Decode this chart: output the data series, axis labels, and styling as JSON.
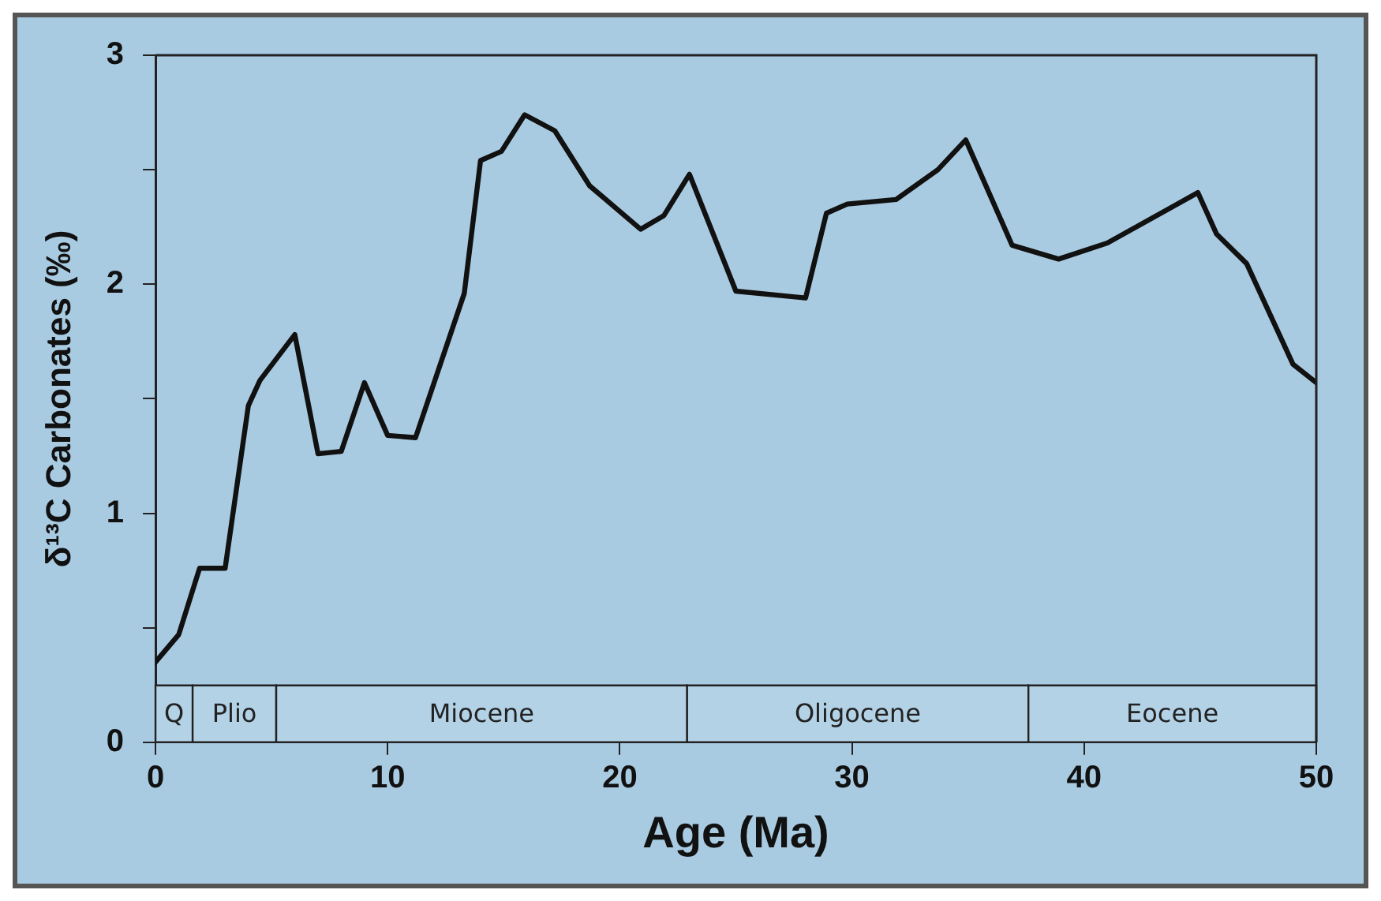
{
  "chart_data": {
    "type": "line",
    "xlabel": "Age (Ma)",
    "ylabel": "δ¹³C Carbonates (‰)",
    "xlim": [
      0,
      50
    ],
    "xticks": [
      0,
      10,
      20,
      30,
      40,
      50
    ],
    "ylim": [
      0,
      3
    ],
    "yticks": [
      0,
      {
        "value": 0.5,
        "label": null
      },
      1,
      {
        "value": 1.5,
        "label": null
      },
      2,
      {
        "value": 2.5,
        "label": null
      },
      3
    ],
    "grid": false,
    "legend": false,
    "marker": "none",
    "line_style": "solid",
    "bands": [
      {
        "axis": "x",
        "from": 0,
        "to": 1.6,
        "label": "Q",
        "color": "#b3d2e6"
      },
      {
        "axis": "x",
        "from": 1.6,
        "to": 5.2,
        "label": "Plio",
        "color": "#b3d2e6"
      },
      {
        "axis": "x",
        "from": 5.2,
        "to": 22.9,
        "label": "Miocene",
        "color": "#b3d2e6"
      },
      {
        "axis": "x",
        "from": 22.9,
        "to": 37.6,
        "label": "Oligocene",
        "color": "#b3d2e6"
      },
      {
        "axis": "x",
        "from": 37.6,
        "to": 50,
        "label": "Eocene",
        "color": "#b3d2e6"
      }
    ],
    "series": [
      {
        "color": "#111111",
        "x": [
          0,
          1.0,
          1.9,
          3.0,
          4.0,
          4.5,
          6.0,
          7.0,
          8.0,
          9.0,
          10.0,
          11.2,
          13.3,
          14.0,
          14.9,
          15.9,
          17.2,
          18.7,
          20.9,
          21.9,
          23.0,
          25.0,
          28.0,
          28.9,
          29.8,
          31.9,
          33.7,
          34.9,
          36.9,
          38.9,
          41.0,
          44.9,
          45.7,
          47.0,
          49.0,
          50
        ],
        "values": [
          0.35,
          0.47,
          0.76,
          0.76,
          1.47,
          1.58,
          1.78,
          1.26,
          1.27,
          1.57,
          1.34,
          1.33,
          1.96,
          2.54,
          2.58,
          2.74,
          2.67,
          2.43,
          2.24,
          2.3,
          2.48,
          1.97,
          1.94,
          2.31,
          2.35,
          2.37,
          2.5,
          2.63,
          2.17,
          2.11,
          2.18,
          2.4,
          2.22,
          2.09,
          1.65,
          1.57
        ]
      }
    ]
  }
}
